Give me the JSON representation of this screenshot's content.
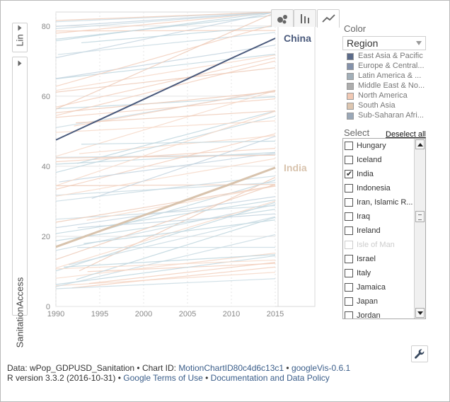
{
  "left_controls": {
    "scale_label": "Lin",
    "y_variable": "SanitationAccess"
  },
  "tabs": [
    {
      "name": "bubble-chart-tab",
      "icon": "bubble-icon",
      "active": false
    },
    {
      "name": "bar-chart-tab",
      "icon": "bar-chart-icon",
      "active": false
    },
    {
      "name": "line-chart-tab",
      "icon": "line-chart-icon",
      "active": true
    }
  ],
  "color_panel": {
    "heading": "Color",
    "selected": "Region",
    "legend": [
      {
        "label": "East Asia & Pacific",
        "color": "#5b6b8a"
      },
      {
        "label": "Europe & Central...",
        "color": "#8492ab"
      },
      {
        "label": "Latin America & ...",
        "color": "#a2afb9"
      },
      {
        "label": "Middle East & No...",
        "color": "#adadad"
      },
      {
        "label": "North America",
        "color": "#f1c9b4"
      },
      {
        "label": "South Asia",
        "color": "#ddc6b0"
      },
      {
        "label": "Sub-Saharan Afri...",
        "color": "#9aa8b8"
      }
    ]
  },
  "select_panel": {
    "heading": "Select",
    "deselect_label": "Deselect all",
    "items": [
      {
        "label": "Hungary",
        "checked": false,
        "enabled": true
      },
      {
        "label": "Iceland",
        "checked": false,
        "enabled": true
      },
      {
        "label": "India",
        "checked": true,
        "enabled": true
      },
      {
        "label": "Indonesia",
        "checked": false,
        "enabled": true
      },
      {
        "label": "Iran, Islamic R...",
        "checked": false,
        "enabled": true
      },
      {
        "label": "Iraq",
        "checked": false,
        "enabled": true
      },
      {
        "label": "Ireland",
        "checked": false,
        "enabled": true
      },
      {
        "label": "Isle of Man",
        "checked": false,
        "enabled": false
      },
      {
        "label": "Israel",
        "checked": false,
        "enabled": true
      },
      {
        "label": "Italy",
        "checked": false,
        "enabled": true
      },
      {
        "label": "Jamaica",
        "checked": false,
        "enabled": true
      },
      {
        "label": "Japan",
        "checked": false,
        "enabled": true
      },
      {
        "label": "Jordan",
        "checked": false,
        "enabled": true
      }
    ]
  },
  "chart_data": {
    "type": "line",
    "xlabel": "",
    "ylabel": "SanitationAccess",
    "xlim": [
      1990,
      2015
    ],
    "ylim": [
      0,
      84
    ],
    "xticks": [
      1990,
      1995,
      2000,
      2005,
      2010,
      2015
    ],
    "yticks": [
      0,
      20,
      40,
      60,
      80
    ],
    "grid": true,
    "series": [
      {
        "name": "China",
        "color": "#4a5a7c",
        "x": [
          1990,
          1995,
          2000,
          2005,
          2010,
          2015
        ],
        "values": [
          47.5,
          53.3,
          59.1,
          64.9,
          70.8,
          76.5
        ]
      },
      {
        "name": "India",
        "color": "#d8c3ad",
        "x": [
          1990,
          1995,
          2000,
          2005,
          2010,
          2015
        ],
        "values": [
          17.0,
          21.5,
          26.0,
          30.5,
          35.0,
          39.6
        ]
      }
    ]
  },
  "footer": {
    "line1_prefix": "Data: wPop_GDPUSD_Sanitation • Chart ID: ",
    "chart_id": "MotionChartID80c4d6c13c1",
    "line1_sep": " • ",
    "googlevis": "googleVis-0.6.1",
    "line2_prefix": "R version 3.3.2 (2016-10-31) • ",
    "terms": "Google Terms of Use",
    "line2_sep": " • ",
    "policy": "Documentation and Data Policy"
  }
}
